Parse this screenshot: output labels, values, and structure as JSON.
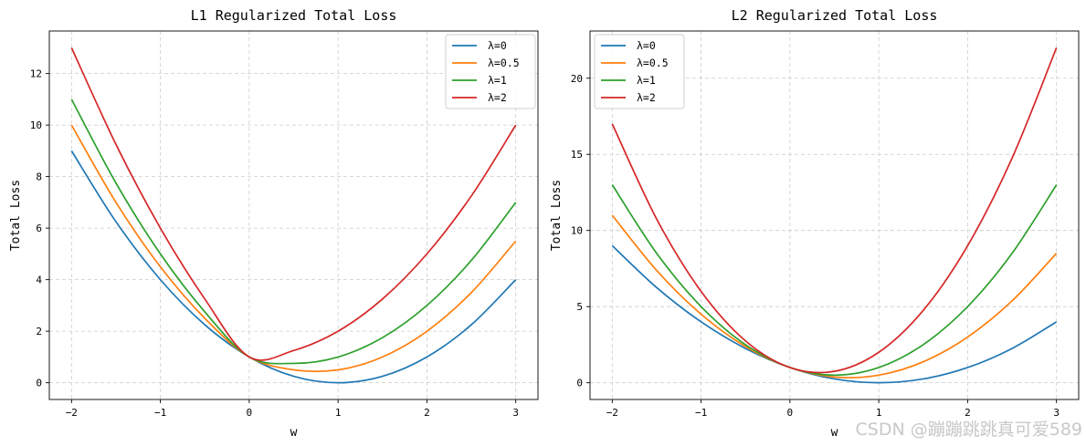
{
  "chart_data": [
    {
      "type": "line",
      "title": "L1 Regularized Total Loss",
      "xlabel": "w",
      "ylabel": "Total Loss",
      "xlim": [
        -2.25,
        3.25
      ],
      "ylim": [
        -0.65,
        13.65
      ],
      "xticks": [
        -2,
        -1,
        0,
        1,
        2,
        3
      ],
      "xtick_labels": [
        "−2",
        "−1",
        "0",
        "1",
        "2",
        "3"
      ],
      "yticks": [
        0,
        2,
        4,
        6,
        8,
        10,
        12
      ],
      "ytick_labels": [
        "0",
        "2",
        "4",
        "6",
        "8",
        "10",
        "12"
      ],
      "grid": true,
      "legend_position": "upper right",
      "x_range": [
        -2,
        3
      ],
      "series": [
        {
          "name": "λ=0",
          "color": "#1f77b4",
          "x": [
            -2,
            -1.5,
            -1,
            -0.5,
            0,
            0.5,
            1,
            1.5,
            2,
            2.5,
            3
          ],
          "values": [
            9,
            6.25,
            4,
            2.25,
            1,
            0.25,
            0,
            0.25,
            1,
            2.25,
            4
          ]
        },
        {
          "name": "λ=0.5",
          "color": "#ff7f0e",
          "x": [
            -2,
            -1.5,
            -1,
            -0.5,
            0,
            0.5,
            1,
            1.5,
            2,
            2.5,
            3
          ],
          "values": [
            10,
            7,
            4.5,
            2.5,
            1,
            0.5,
            0.5,
            1,
            2,
            3.5,
            5.5
          ]
        },
        {
          "name": "λ=1",
          "color": "#2ca02c",
          "x": [
            -2,
            -1.5,
            -1,
            -0.5,
            0,
            0.5,
            1,
            1.5,
            2,
            2.5,
            3
          ],
          "values": [
            11,
            7.75,
            5,
            2.75,
            1,
            0.75,
            1,
            1.75,
            3,
            4.75,
            7
          ]
        },
        {
          "name": "λ=2",
          "color": "#d62728",
          "x": [
            -2,
            -1.5,
            -1,
            -0.5,
            0,
            0.5,
            1,
            1.5,
            2,
            2.5,
            3
          ],
          "values": [
            13,
            9.25,
            6,
            3.25,
            1,
            1.25,
            2,
            3.25,
            5,
            7.25,
            10
          ]
        }
      ]
    },
    {
      "type": "line",
      "title": "L2 Regularized Total Loss",
      "xlabel": "w",
      "ylabel": "Total Loss",
      "xlim": [
        -2.25,
        3.25
      ],
      "ylim": [
        -1.1,
        23.1
      ],
      "xticks": [
        -2,
        -1,
        0,
        1,
        2,
        3
      ],
      "xtick_labels": [
        "−2",
        "−1",
        "0",
        "1",
        "2",
        "3"
      ],
      "yticks": [
        0,
        5,
        10,
        15,
        20
      ],
      "ytick_labels": [
        "0",
        "5",
        "10",
        "15",
        "20"
      ],
      "grid": true,
      "legend_position": "upper left",
      "x_range": [
        -2,
        3
      ],
      "series": [
        {
          "name": "λ=0",
          "color": "#1f77b4",
          "x": [
            -2,
            -1.5,
            -1,
            -0.5,
            0,
            0.5,
            1,
            1.5,
            2,
            2.5,
            3
          ],
          "values": [
            9,
            6.25,
            4,
            2.25,
            1,
            0.25,
            0,
            0.25,
            1,
            2.25,
            4
          ]
        },
        {
          "name": "λ=0.5",
          "color": "#ff7f0e",
          "x": [
            -2,
            -1.5,
            -1,
            -0.5,
            0,
            0.5,
            1,
            1.5,
            2,
            2.5,
            3
          ],
          "values": [
            11,
            7.375,
            4.5,
            2.375,
            1,
            0.375,
            0.5,
            1.375,
            3,
            5.375,
            8.5
          ]
        },
        {
          "name": "λ=1",
          "color": "#2ca02c",
          "x": [
            -2,
            -1.5,
            -1,
            -0.5,
            0,
            0.5,
            1,
            1.5,
            2,
            2.5,
            3
          ],
          "values": [
            13,
            8.5,
            5,
            2.5,
            1,
            0.5,
            1,
            2.5,
            5,
            8.5,
            13
          ]
        },
        {
          "name": "λ=2",
          "color": "#d62728",
          "x": [
            -2,
            -1.5,
            -1,
            -0.5,
            0,
            0.5,
            1,
            1.5,
            2,
            2.5,
            3
          ],
          "values": [
            17,
            10.75,
            6,
            2.75,
            1,
            0.75,
            2,
            4.75,
            9,
            14.75,
            22
          ]
        }
      ]
    }
  ],
  "watermark": "CSDN @蹦蹦跳跳真可爱589"
}
